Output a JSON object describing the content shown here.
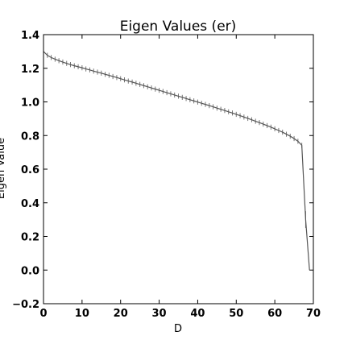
{
  "chart_data": {
    "type": "line",
    "title": "Eigen Values (er)",
    "xlabel": "D",
    "ylabel": "Eigen Value",
    "xlim": [
      0,
      70
    ],
    "ylim": [
      -0.2,
      1.4
    ],
    "x_ticks": [
      0,
      10,
      20,
      30,
      40,
      50,
      60,
      70
    ],
    "y_ticks": [
      -0.2,
      0.0,
      0.2,
      0.4,
      0.6,
      0.8,
      1.0,
      1.2,
      1.4
    ],
    "y_tick_labels": [
      "−0.2",
      "0.0",
      "0.2",
      "0.4",
      "0.6",
      "0.8",
      "1.0",
      "1.2",
      "1.4"
    ],
    "grid": false,
    "series": [
      {
        "color": "#555555",
        "error_bar_color": "#777777",
        "x": [
          0,
          1,
          2,
          3,
          4,
          5,
          6,
          7,
          8,
          9,
          10,
          11,
          12,
          13,
          14,
          15,
          16,
          17,
          18,
          19,
          20,
          21,
          22,
          23,
          24,
          25,
          26,
          27,
          28,
          29,
          30,
          31,
          32,
          33,
          34,
          35,
          36,
          37,
          38,
          39,
          40,
          41,
          42,
          43,
          44,
          45,
          46,
          47,
          48,
          49,
          50,
          51,
          52,
          53,
          54,
          55,
          56,
          57,
          58,
          59,
          60,
          61,
          62,
          63,
          64,
          65,
          66,
          67,
          68,
          69
        ],
        "values": [
          1.3,
          1.277,
          1.264,
          1.254,
          1.245,
          1.237,
          1.229,
          1.222,
          1.215,
          1.209,
          1.203,
          1.196,
          1.19,
          1.183,
          1.177,
          1.171,
          1.164,
          1.158,
          1.151,
          1.145,
          1.138,
          1.131,
          1.124,
          1.118,
          1.111,
          1.104,
          1.097,
          1.09,
          1.083,
          1.076,
          1.069,
          1.062,
          1.055,
          1.048,
          1.041,
          1.034,
          1.027,
          1.02,
          1.013,
          1.006,
          0.999,
          0.992,
          0.985,
          0.978,
          0.971,
          0.963,
          0.956,
          0.949,
          0.941,
          0.934,
          0.926,
          0.918,
          0.91,
          0.902,
          0.894,
          0.885,
          0.877,
          0.868,
          0.859,
          0.85,
          0.84,
          0.83,
          0.82,
          0.808,
          0.796,
          0.782,
          0.766,
          0.742,
          0.3,
          0.0
        ],
        "error": [
          0.015,
          0.015,
          0.015,
          0.015,
          0.015,
          0.015,
          0.015,
          0.015,
          0.015,
          0.015,
          0.015,
          0.015,
          0.015,
          0.015,
          0.015,
          0.015,
          0.015,
          0.015,
          0.015,
          0.015,
          0.015,
          0.015,
          0.015,
          0.015,
          0.015,
          0.015,
          0.015,
          0.015,
          0.015,
          0.015,
          0.015,
          0.015,
          0.015,
          0.015,
          0.015,
          0.015,
          0.015,
          0.015,
          0.015,
          0.015,
          0.015,
          0.015,
          0.015,
          0.015,
          0.015,
          0.015,
          0.015,
          0.015,
          0.015,
          0.015,
          0.015,
          0.015,
          0.015,
          0.015,
          0.015,
          0.015,
          0.015,
          0.015,
          0.015,
          0.015,
          0.015,
          0.015,
          0.015,
          0.015,
          0.015,
          0.015,
          0.015,
          0.015,
          0.05,
          0.0
        ]
      }
    ]
  }
}
